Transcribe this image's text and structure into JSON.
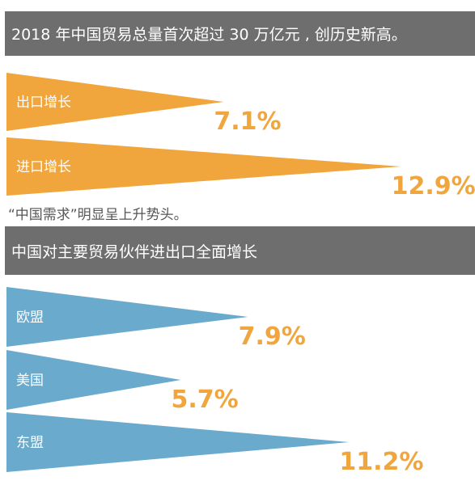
{
  "banners": {
    "top": "2018 年中国贸易总量首次超过 30 万亿元 , 创历史新高。",
    "middle": "中国对主要贸易伙伴进出口全面增长"
  },
  "note": "“中国需求”明显呈上升势头。",
  "colors": {
    "orange": "#f0a63c",
    "blue": "#6aaacd",
    "banner": "#6e6e6e"
  },
  "chart_data": [
    {
      "type": "bar",
      "categories": [
        "出口增长",
        "进口增长"
      ],
      "values": [
        7.1,
        12.9
      ],
      "value_labels": [
        "7.1%",
        "12.9%"
      ],
      "unit": "%"
    },
    {
      "type": "bar",
      "categories": [
        "欧盟",
        "美国",
        "东盟"
      ],
      "values": [
        7.9,
        5.7,
        11.2
      ],
      "value_labels": [
        "7.9%",
        "5.7%",
        "11.2%"
      ],
      "unit": "%"
    }
  ]
}
